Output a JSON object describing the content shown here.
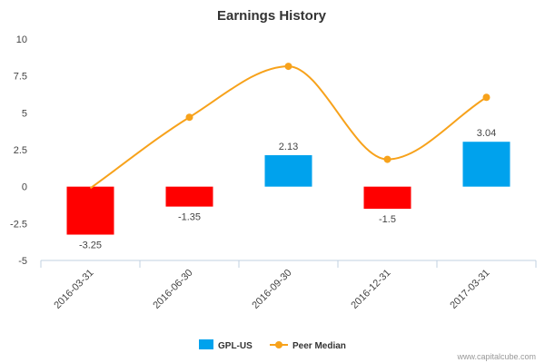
{
  "chart_data": {
    "type": "bar",
    "title": "Earnings History",
    "categories": [
      "2016-03-31",
      "2016-06-30",
      "2016-09-30",
      "2016-12-31",
      "2017-03-31"
    ],
    "series": [
      {
        "name": "GPL-US",
        "type": "bar",
        "values": [
          -3.25,
          -1.35,
          2.13,
          -1.5,
          3.04
        ],
        "data_labels": [
          "-3.25",
          "-1.35",
          "2.13",
          "-1.5",
          "3.04"
        ]
      },
      {
        "name": "Peer Median",
        "type": "line",
        "smooth": true,
        "values": [
          -0.1,
          4.7,
          8.15,
          1.85,
          6.05
        ]
      }
    ],
    "ylim": [
      -5,
      10
    ],
    "yticks": [
      "10",
      "7.5",
      "5",
      "2.5",
      "0",
      "-2.5",
      "-5"
    ],
    "ytick_values": [
      10,
      7.5,
      5,
      2.5,
      0,
      -2.5,
      -5
    ],
    "grid": false,
    "legend_position": "bottom-center",
    "colors": {
      "positive": "#00a2ed",
      "negative": "#ff0000",
      "line": "#f7a21b",
      "axis": "#c0d0e0"
    },
    "credit": "www.capitalcube.com"
  }
}
